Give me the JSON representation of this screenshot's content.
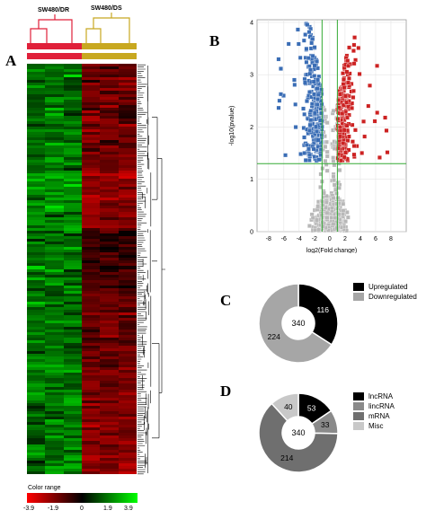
{
  "panels": {
    "a": "A",
    "b": "B",
    "c": "C",
    "d": "D"
  },
  "heatmap": {
    "group1_label": "SW480/DR",
    "group2_label": "SW480/DS",
    "group1_color": "#e0203a",
    "group2_color": "#c8a820",
    "color_range": {
      "title": "Color range",
      "ticks": [
        "-3.9",
        "-1.9",
        "0",
        "1.9",
        "3.9"
      ],
      "low_color": "#ff0000",
      "mid_color": "#000000",
      "high_color": "#00ff00"
    }
  },
  "chart_data": [
    {
      "type": "scatter",
      "panel": "B",
      "xlabel": "log2(Fold change)",
      "ylabel": "-log10(pvalue)",
      "xlim": [
        -9.5,
        10
      ],
      "ylim": [
        0,
        4.05
      ],
      "xticks": [
        -8,
        -6,
        -4,
        -2,
        0,
        2,
        4,
        6,
        8
      ],
      "yticks": [
        0,
        1,
        2,
        3,
        4
      ],
      "grid": true,
      "threshold_lines": {
        "x": [
          -1,
          1
        ],
        "y": 1.3,
        "color": "#33aa33"
      },
      "colors": {
        "down": "#3a6db5",
        "up": "#cc2222",
        "ns": "#b8b8b8"
      }
    },
    {
      "type": "pie",
      "panel": "C",
      "donut": true,
      "center_label": "340",
      "labels": [
        "Upregulated",
        "Downregulated"
      ],
      "values": [
        116,
        224
      ],
      "colors": [
        "#000000",
        "#a6a6a6"
      ],
      "legend": "right"
    },
    {
      "type": "pie",
      "panel": "D",
      "donut": true,
      "center_label": "340",
      "labels": [
        "lncRNA",
        "lincRNA",
        "mRNA",
        "Misc"
      ],
      "values": [
        53,
        33,
        214,
        40
      ],
      "colors": [
        "#000000",
        "#8a8a8a",
        "#6f6f6f",
        "#c8c8c8"
      ],
      "legend": "right"
    }
  ]
}
